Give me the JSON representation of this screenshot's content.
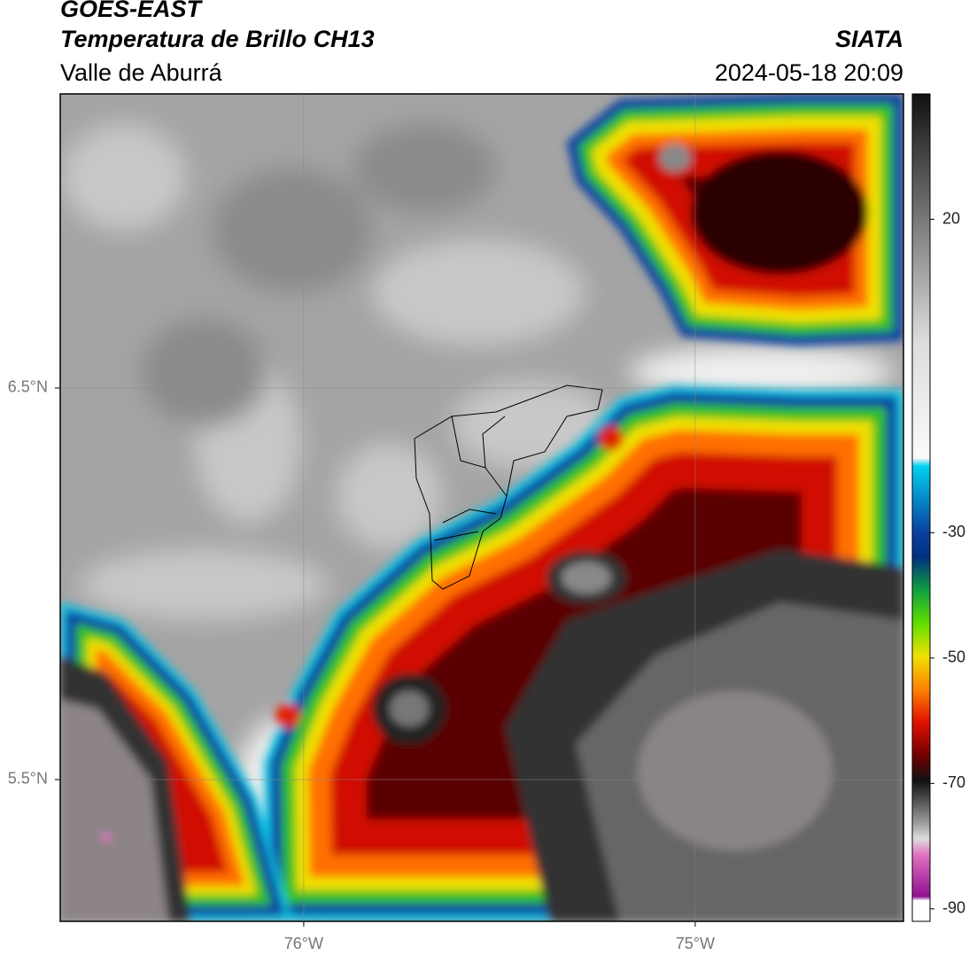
{
  "header": {
    "title": "GOES-EAST",
    "subtitle": "Temperatura de Brillo CH13",
    "region": "Valle de Aburrá",
    "source": "SIATA",
    "datetime": "2024-05-18 20:09"
  },
  "map": {
    "xlim": [
      -76.622,
      -74.468
    ],
    "ylim": [
      5.138,
      7.251
    ],
    "xticks": [
      {
        "value": -76,
        "label": "76°W"
      },
      {
        "value": -75,
        "label": "75°W"
      }
    ],
    "yticks": [
      {
        "value": 6.5,
        "label": "6.5°N"
      },
      {
        "value": 5.5,
        "label": "5.5°N"
      }
    ]
  },
  "colorbar": {
    "lim": [
      -92,
      40
    ],
    "ticks": [
      20,
      -30,
      -50,
      -70,
      -90
    ]
  }
}
